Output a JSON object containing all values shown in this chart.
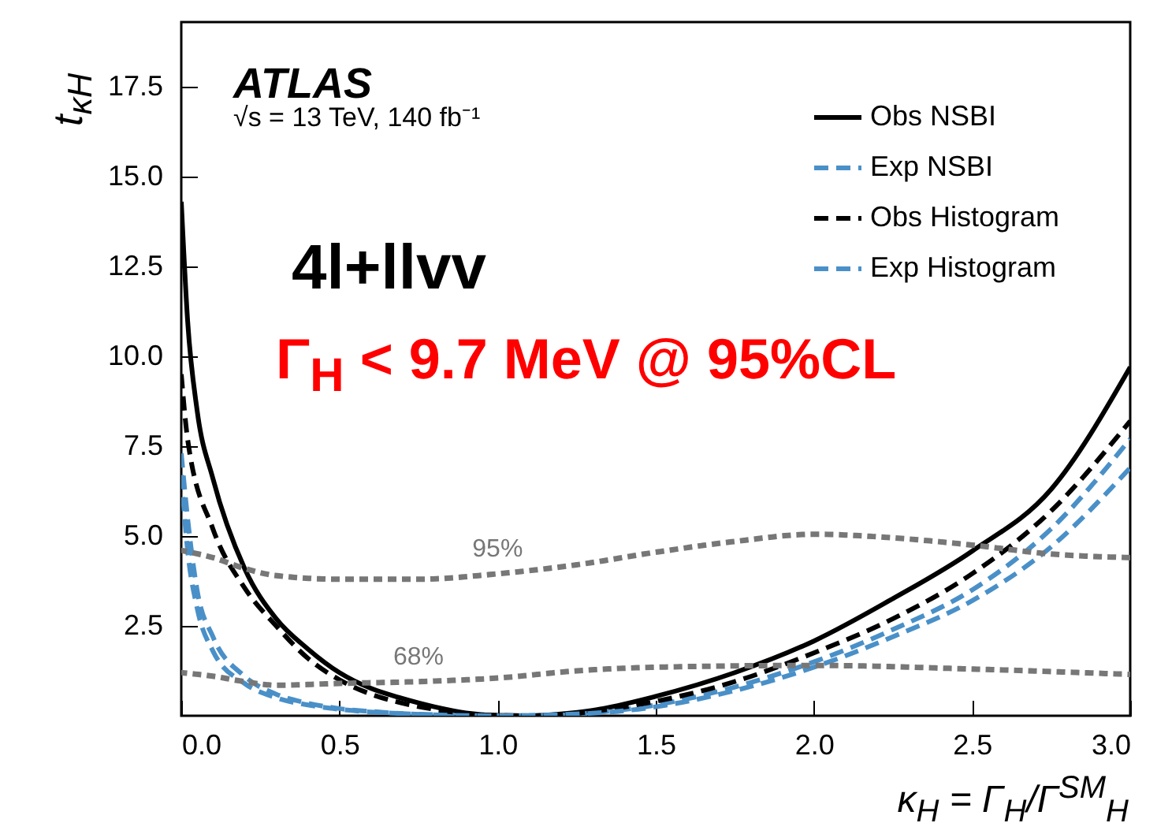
{
  "chart_data": {
    "type": "line",
    "xlabel": "κ$_{H}$ = Γ$_{H}$/Γ$^{SM}$$_{H}$",
    "ylabel": "t$_{κH}$",
    "annotations": [
      "ATLAS",
      "√s = 13 TeV, 140 fb⁻¹",
      "4l+llvv",
      "Γ$_{H}$ < 9.7 MeV @ 95%CL"
    ],
    "xlim": [
      0,
      3
    ],
    "xticks": [
      {
        "value": 0,
        "label": "0.0"
      },
      0.5,
      {
        "value": 1,
        "label": "1.0"
      },
      1.5,
      {
        "value": 2,
        "label": "2.0"
      },
      2.5,
      {
        "value": 3,
        "label": "3.0"
      }
    ],
    "ylim": [
      0,
      19.3
    ],
    "yticks": [
      2.5,
      {
        "value": 5,
        "label": "5.0"
      },
      7.5,
      {
        "value": 10,
        "label": "10.0"
      },
      12.5,
      {
        "value": 15,
        "label": "15.0"
      },
      17.5
    ],
    "legend": "top right",
    "grid": false,
    "marker": "none",
    "series": [
      {
        "name": "Obs NSBI",
        "color": "#000000",
        "line_style": "solid",
        "x": [
          0,
          0.02,
          0.05,
          0.1,
          0.2,
          0.3,
          0.4,
          0.5,
          0.6,
          0.7,
          0.8,
          0.9,
          1.0,
          1.1,
          1.2,
          1.3,
          1.5,
          1.75,
          2.0,
          2.25,
          2.5,
          2.75,
          3.0
        ],
        "values": [
          14.3,
          11,
          8.5,
          6.6,
          4.1,
          2.7,
          1.86,
          1.2,
          0.76,
          0.48,
          0.25,
          0.08,
          0.01,
          0,
          0.05,
          0.15,
          0.54,
          1.2,
          2.08,
          3.26,
          4.58,
          6.3,
          9.7
        ]
      },
      {
        "name": "Exp NSBI",
        "color": "#4a90c8",
        "line_style": "dashed",
        "x": [
          0,
          0.02,
          0.05,
          0.1,
          0.2,
          0.3,
          0.4,
          0.5,
          0.6,
          0.7,
          0.8,
          1.0,
          1.2,
          1.3,
          1.5,
          1.75,
          2.0,
          2.25,
          2.5,
          2.75,
          3.0
        ],
        "values": [
          7.3,
          5.5,
          3.5,
          2.2,
          1.1,
          0.6,
          0.35,
          0.2,
          0.12,
          0.06,
          0.03,
          0,
          0.02,
          0.08,
          0.3,
          0.8,
          1.5,
          2.4,
          3.5,
          5.2,
          7.7
        ]
      },
      {
        "name": "Obs Histogram",
        "color": "#000000",
        "line_style": "dashed",
        "x": [
          0,
          0.02,
          0.1,
          0.2,
          0.3,
          0.4,
          0.5,
          0.6,
          0.7,
          0.8,
          0.9,
          1.0,
          1.1,
          1.2,
          1.3,
          1.5,
          1.75,
          2.0,
          2.25,
          2.5,
          2.75,
          3.0
        ],
        "values": [
          9.5,
          7.7,
          5.2,
          3.56,
          2.5,
          1.6,
          1.0,
          0.6,
          0.35,
          0.18,
          0.06,
          0.01,
          0,
          0.03,
          0.12,
          0.4,
          0.95,
          1.75,
          2.7,
          3.95,
          5.7,
          8.2
        ]
      },
      {
        "name": "Exp Histogram",
        "color": "#4a90c8",
        "line_style": "dashed",
        "x": [
          0,
          0.02,
          0.05,
          0.1,
          0.2,
          0.3,
          0.4,
          0.5,
          0.7,
          1.0,
          1.3,
          1.5,
          1.75,
          2.0,
          2.25,
          2.5,
          2.75,
          3.0
        ],
        "values": [
          6.7,
          4.6,
          3.0,
          1.8,
          0.9,
          0.5,
          0.3,
          0.18,
          0.06,
          0,
          0.07,
          0.25,
          0.7,
          1.35,
          2.2,
          3.2,
          4.7,
          6.9
        ]
      },
      {
        "name": "95%",
        "color": "#777777",
        "line_style": "dotted",
        "x": [
          0,
          0.1,
          0.2,
          0.3,
          0.5,
          0.75,
          1.0,
          1.25,
          1.5,
          1.75,
          2.0,
          2.25,
          2.5,
          2.75,
          3.0
        ],
        "values": [
          4.6,
          4.4,
          4.1,
          3.9,
          3.8,
          3.8,
          3.95,
          4.2,
          4.55,
          4.85,
          5.05,
          4.95,
          4.75,
          4.5,
          4.4
        ]
      },
      {
        "name": "68%",
        "color": "#777777",
        "line_style": "dotted",
        "x": [
          0,
          0.1,
          0.2,
          0.3,
          0.5,
          0.75,
          1.0,
          1.25,
          1.5,
          2.0,
          2.5,
          3.0
        ],
        "values": [
          1.2,
          1.1,
          0.95,
          0.85,
          0.9,
          0.95,
          1.05,
          1.25,
          1.35,
          1.4,
          1.3,
          1.15
        ]
      }
    ]
  }
}
